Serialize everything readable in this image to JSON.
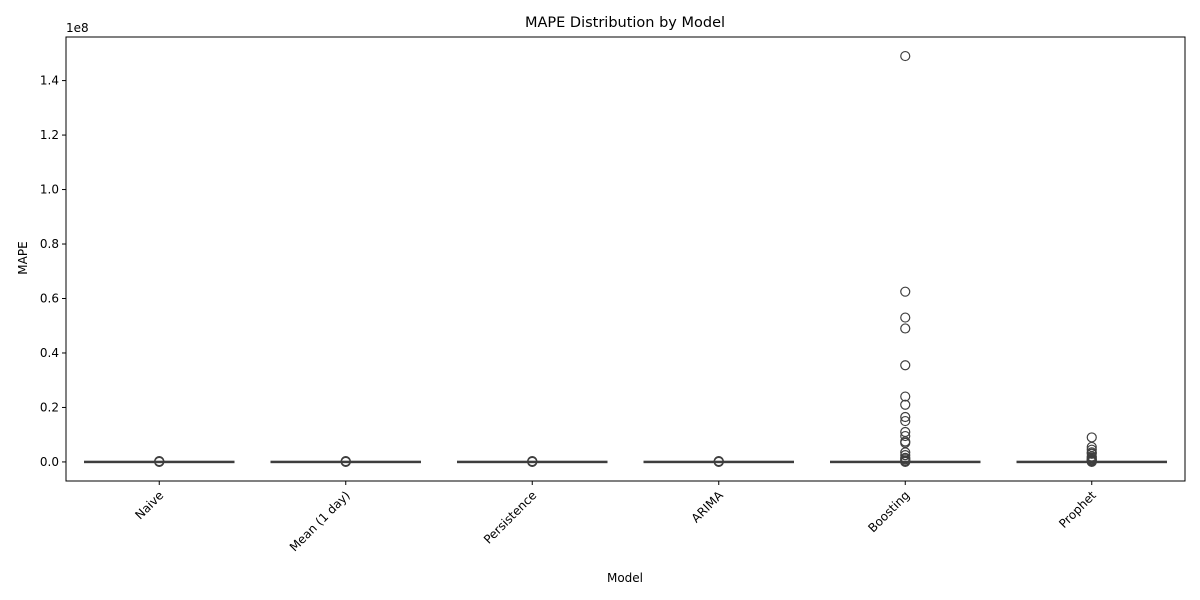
{
  "chart_data": {
    "type": "box",
    "title": "MAPE Distribution by Model",
    "xlabel": "Model",
    "ylabel": "MAPE",
    "y_scale_label": "1e8",
    "categories": [
      "Naive",
      "Mean (1 day)",
      "Persistence",
      "ARIMA",
      "Boosting",
      "Prophet"
    ],
    "ylim": [
      -0.07,
      1.56
    ],
    "yticks": [
      0.0,
      0.2,
      0.4,
      0.6,
      0.8,
      1.0,
      1.2,
      1.4
    ],
    "ytick_labels": [
      "0.0",
      "0.2",
      "0.4",
      "0.6",
      "0.8",
      "1.0",
      "1.2",
      "1.4"
    ],
    "grid": false,
    "box_color": "#1f77b4",
    "boxes": [
      {
        "name": "Naive",
        "q1": 0,
        "median": 0,
        "q3": 0,
        "whisker_low": 0,
        "whisker_high": 0,
        "outliers": [
          0.0,
          0.001,
          0.002,
          0.003
        ]
      },
      {
        "name": "Mean (1 day)",
        "q1": 0,
        "median": 0,
        "q3": 0,
        "whisker_low": 0,
        "whisker_high": 0,
        "outliers": [
          0.0,
          0.001,
          0.002,
          0.003
        ]
      },
      {
        "name": "Persistence",
        "q1": 0,
        "median": 0,
        "q3": 0,
        "whisker_low": 0,
        "whisker_high": 0,
        "outliers": [
          0.0,
          0.001,
          0.002,
          0.003
        ]
      },
      {
        "name": "ARIMA",
        "q1": 0,
        "median": 0,
        "q3": 0,
        "whisker_low": 0,
        "whisker_high": 0,
        "outliers": [
          0.0,
          0.001,
          0.002,
          0.003
        ]
      },
      {
        "name": "Boosting",
        "q1": 0,
        "median": 0,
        "q3": 0,
        "whisker_low": 0,
        "whisker_high": 0,
        "outliers": [
          1.49,
          0.625,
          0.53,
          0.49,
          0.355,
          0.24,
          0.21,
          0.165,
          0.15,
          0.11,
          0.095,
          0.075,
          0.07,
          0.035,
          0.025,
          0.015,
          0.01,
          0.005,
          0.002,
          0.0
        ]
      },
      {
        "name": "Prophet",
        "q1": 0,
        "median": 0,
        "q3": 0,
        "whisker_low": 0,
        "whisker_high": 0,
        "outliers": [
          0.09,
          0.055,
          0.045,
          0.035,
          0.03,
          0.02,
          0.015,
          0.01,
          0.007,
          0.004,
          0.002,
          0.0
        ]
      }
    ]
  }
}
